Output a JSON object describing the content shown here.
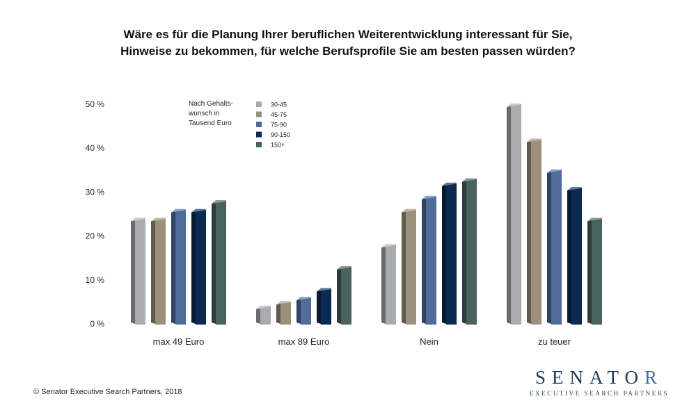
{
  "chart_data": {
    "type": "bar",
    "title_lines": [
      "Wäre es für die Planung Ihrer beruflichen Weiterentwicklung interessant für Sie,",
      "Hinweise zu bekommen, für welche Berufsprofile Sie am besten passen würden?"
    ],
    "categories": [
      "max 49 Euro",
      "max 89 Euro",
      "Nein",
      "zu teuer"
    ],
    "series": [
      {
        "name": "30-45",
        "color": "#a9acae",
        "values": [
          24,
          4,
          18,
          50
        ]
      },
      {
        "name": "45-75",
        "color": "#9c907b",
        "values": [
          24,
          5,
          26,
          42
        ]
      },
      {
        "name": "75-90",
        "color": "#4f6c9a",
        "values": [
          26,
          6,
          29,
          35
        ]
      },
      {
        "name": "90-150",
        "color": "#0b2a52",
        "values": [
          26,
          8,
          32,
          31
        ]
      },
      {
        "name": "150+",
        "color": "#47625f",
        "values": [
          28,
          13,
          33,
          24
        ]
      }
    ],
    "y_ticks": [
      {
        "value": 0,
        "label": "0 %"
      },
      {
        "value": 10,
        "label": "10 %"
      },
      {
        "value": 20,
        "label": "20 %"
      },
      {
        "value": 30,
        "label": "30 %"
      },
      {
        "value": 40,
        "label": "40 %"
      },
      {
        "value": 50,
        "label": "50 %"
      }
    ],
    "ylim": [
      0,
      50
    ],
    "grid": false,
    "legend": {
      "title_lines": [
        "Nach Gehalts-",
        "wunsch in",
        "Tausend Euro"
      ],
      "placement": "top-left"
    }
  },
  "footer": {
    "copyright": "© Senator Executive Search Partners, 2018"
  },
  "logo": {
    "main": "SENATO",
    "main_end": "R",
    "sub": "EXECUTIVE SEARCH PARTNERS"
  }
}
